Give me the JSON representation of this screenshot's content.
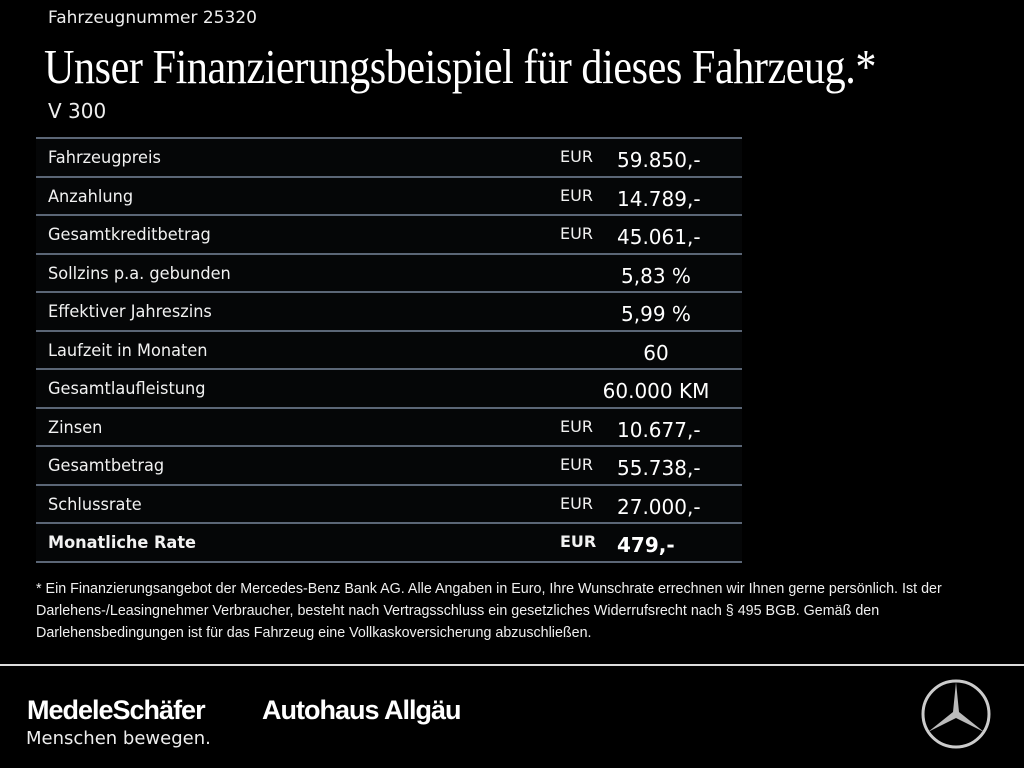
{
  "header": {
    "vehicle_number": "Fahrzeugnummer 25320",
    "title": "Unser Finanzierungsbeispiel für dieses Fahrzeug.*",
    "model": "V 300"
  },
  "rows": [
    {
      "label": "Fahrzeugpreis",
      "currency": "EUR",
      "value": "59.850,-"
    },
    {
      "label": "Anzahlung",
      "currency": "EUR",
      "value": "14.789,-"
    },
    {
      "label": "Gesamtkreditbetrag",
      "currency": "EUR",
      "value": "45.061,-"
    },
    {
      "label": "Sollzins p.a. gebunden",
      "currency": "",
      "value": "5,83 %"
    },
    {
      "label": "Effektiver Jahreszins",
      "currency": "",
      "value": "5,99 %"
    },
    {
      "label": "Laufzeit in Monaten",
      "currency": "",
      "value": "60"
    },
    {
      "label": "Gesamtlaufleistung",
      "currency": "",
      "value": "60.000 KM"
    },
    {
      "label": "Zinsen",
      "currency": "EUR",
      "value": "10.677,-"
    },
    {
      "label": "Gesamtbetrag",
      "currency": "EUR",
      "value": "55.738,-"
    },
    {
      "label": "Schlussrate",
      "currency": "EUR",
      "value": "27.000,-"
    },
    {
      "label": "Monatliche Rate",
      "currency": "EUR",
      "value": "479,-",
      "bold": true
    }
  ],
  "footnote": "* Ein Finanzierungsangebot der Mercedes-Benz Bank AG. Alle Angaben in Euro, Ihre Wunschrate errechnen wir Ihnen gerne persönlich. Ist der Darlehens-/Leasingnehmer Verbraucher, besteht nach Vertragsschluss ein gesetzliches Widerrufsrecht nach § 495 BGB. Gemäß den Darlehensbedingungen ist für das Fahrzeug eine Vollkaskoversicherung abzuschließen.",
  "footer": {
    "brand1": "MedeleSchäfer",
    "brand2": "Autohaus Allgäu",
    "slogan": "Menschen bewegen.",
    "logo_icon": "mercedes-star-icon"
  }
}
